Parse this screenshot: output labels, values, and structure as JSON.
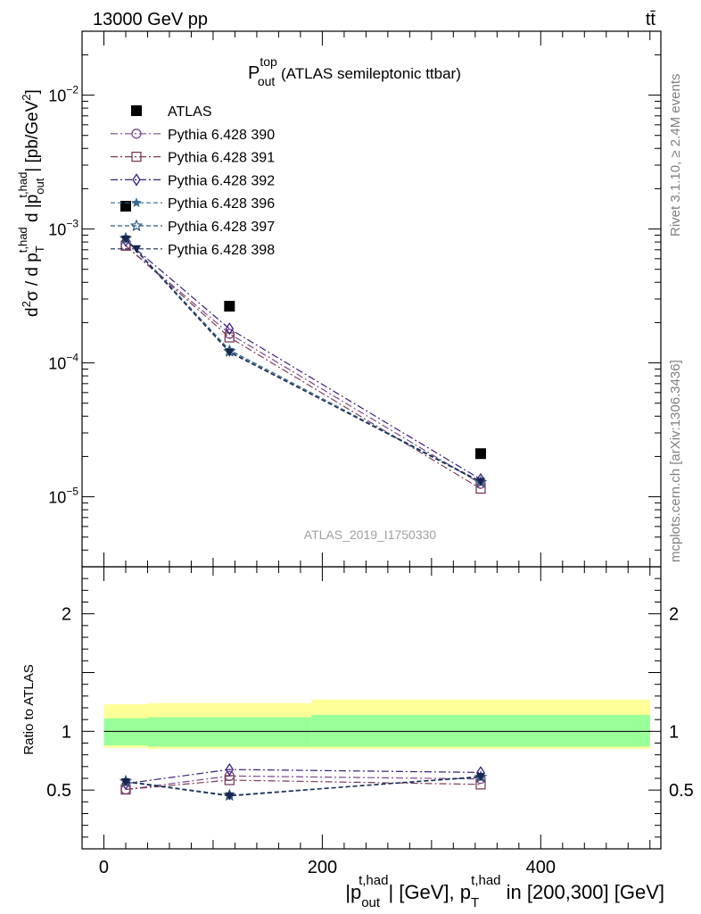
{
  "header": {
    "left": "13000 GeV pp",
    "right": "tt̄"
  },
  "side_labels": {
    "rivet": "Rivet 3.1.10, ≥ 2.4M events",
    "mcplots": "mcplots.cern.ch [arXiv:1306.3436]"
  },
  "main_plot": {
    "title_main": "P",
    "title_sup": "top",
    "title_sub": "out",
    "title_rest": " (ATLAS semileptonic ttbar)",
    "watermark": "ATLAS_2019_I1750330",
    "ylabel": "d²σ / d p_T^{t,had} d |p_out^{t,had}| [pb/GeV²]"
  },
  "ratio_plot": {
    "ylabel": "Ratio to ATLAS"
  },
  "xaxis": {
    "label": "|p_out^{t,had}| [GeV], p_T^{t,had} in [200,300] [GeV]"
  },
  "chart_data": {
    "type": "line",
    "title": "P_out^top (ATLAS semileptonic ttbar)",
    "x_range": [
      -20,
      510
    ],
    "y_range": [
      3e-06,
      0.03
    ],
    "y_scale": "log",
    "ratio_range": [
      0.0,
      2.4
    ],
    "x_ticks": [
      0,
      200,
      400
    ],
    "y_tick_labels": [
      "10^-5",
      "10^-4",
      "10^-3",
      "10^-2"
    ],
    "ratio_ticks": [
      0.5,
      1,
      2
    ],
    "legend_position": "top-left",
    "reference": {
      "name": "ATLAS",
      "color": "#000000",
      "x": [
        20,
        115,
        345
      ],
      "y": [
        0.00148,
        0.000265,
        2.1e-05
      ]
    },
    "bands": {
      "x_edges": [
        0,
        40,
        190,
        500
      ],
      "inner": [
        [
          0.88,
          1.11
        ],
        [
          0.87,
          1.12
        ],
        [
          0.87,
          1.14
        ]
      ],
      "outer": [
        [
          0.86,
          1.23
        ],
        [
          0.85,
          1.24
        ],
        [
          0.85,
          1.27
        ]
      ],
      "inner_color": "#99ff99",
      "outer_color": "#ffff99"
    },
    "series": [
      {
        "name": "Pythia 6.428 390",
        "color": "#7b4a8b",
        "marker": "circle-open",
        "dash": "8,3,2,3",
        "x": [
          20,
          115,
          345
        ],
        "y": [
          0.00075,
          0.000165,
          1.25e-05
        ],
        "ratio": [
          0.505,
          0.62,
          0.595
        ]
      },
      {
        "name": "Pythia 6.428 391",
        "color": "#7a3e5a",
        "marker": "square-open",
        "dash": "8,3,2,3",
        "x": [
          20,
          115,
          345
        ],
        "y": [
          0.00075,
          0.000155,
          1.15e-05
        ],
        "ratio": [
          0.505,
          0.585,
          0.548
        ]
      },
      {
        "name": "Pythia 6.428 392",
        "color": "#3b1f7a",
        "marker": "diamond-open",
        "dash": "8,3,2,3",
        "x": [
          20,
          115,
          345
        ],
        "y": [
          0.00082,
          0.00018,
          1.35e-05
        ],
        "ratio": [
          0.555,
          0.675,
          0.65
        ]
      },
      {
        "name": "Pythia 6.428 396",
        "color": "#3a6a8a",
        "marker": "star-filled",
        "dash": "5,3",
        "x": [
          20,
          115,
          345
        ],
        "y": [
          0.00085,
          0.000125,
          1.3e-05
        ],
        "ratio": [
          0.575,
          0.455,
          0.615
        ]
      },
      {
        "name": "Pythia 6.428 397",
        "color": "#2c5a7e",
        "marker": "star-open",
        "dash": "5,3",
        "x": [
          20,
          115,
          345
        ],
        "y": [
          0.00085,
          0.000122,
          1.28e-05
        ],
        "ratio": [
          0.575,
          0.455,
          0.61
        ]
      },
      {
        "name": "Pythia 6.428 398",
        "color": "#1a2450",
        "marker": "triangle-down-filled",
        "dash": "5,3",
        "x": [
          20,
          115,
          345
        ],
        "y": [
          0.00084,
          0.00012,
          1.3e-05
        ],
        "ratio": [
          0.57,
          0.45,
          0.615
        ]
      }
    ]
  }
}
